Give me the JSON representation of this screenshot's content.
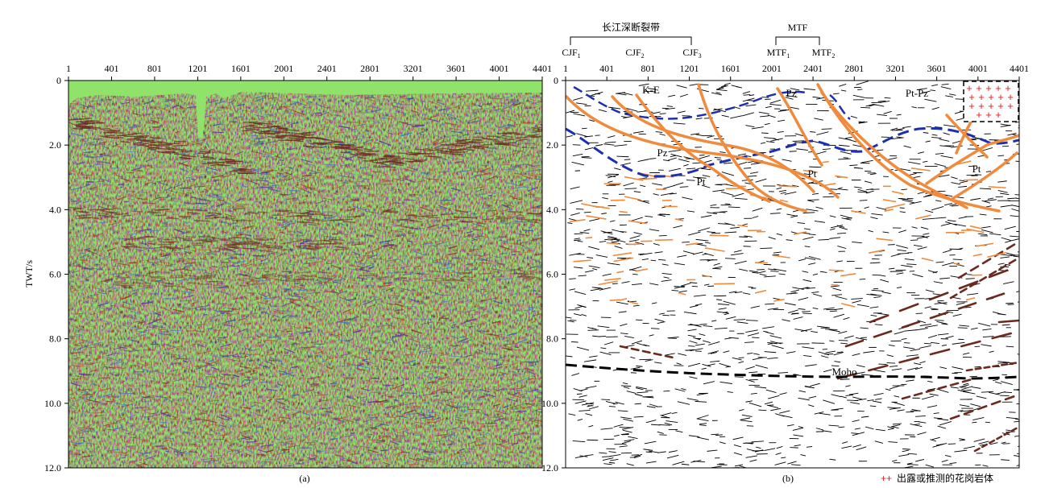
{
  "panel_a": {
    "caption": "(a)",
    "y_axis_label": "TWT/s",
    "x_ticks": [
      "1",
      "401",
      "801",
      "1201",
      "1601",
      "2001",
      "2401",
      "2801",
      "3201",
      "3601",
      "4001",
      "4401"
    ],
    "y_ticks": [
      "0",
      "2.0",
      "4.0",
      "6.0",
      "8.0",
      "10.0",
      "12.0"
    ]
  },
  "panel_b": {
    "caption": "(b)",
    "x_ticks": [
      "1",
      "401",
      "801",
      "1201",
      "1601",
      "2001",
      "2401",
      "2801",
      "3201",
      "3601",
      "4001",
      "4401"
    ],
    "y_ticks": [
      "0",
      "2.0",
      "4.0",
      "6.0",
      "8.0",
      "10.0",
      "12.0"
    ],
    "fault_groups": [
      {
        "label": "长江深断裂带"
      },
      {
        "label": "MTF"
      }
    ],
    "fault_labels": [
      {
        "base": "CJF",
        "sub": "1"
      },
      {
        "base": "CJF",
        "sub": "2"
      },
      {
        "base": "CJF",
        "sub": "3"
      },
      {
        "base": "MTF",
        "sub": "1"
      },
      {
        "base": "MTF",
        "sub": "2"
      }
    ],
    "unit_labels": [
      "K-E",
      "Pz",
      "Pt-Pz",
      "Pz",
      "Pt",
      "Pt",
      "Pt",
      "Moho"
    ],
    "legend": {
      "symbol": "++",
      "text": "出露或推测的花岗岩体"
    }
  },
  "colors": {
    "seismic_bg": "#8fe36b",
    "fault_orange": "#f08a3c",
    "boundary_blue": "#1c2fb0",
    "moho_black": "#000000",
    "reflector_brown": "#6b2a1e",
    "granite_red": "#e02020"
  }
}
